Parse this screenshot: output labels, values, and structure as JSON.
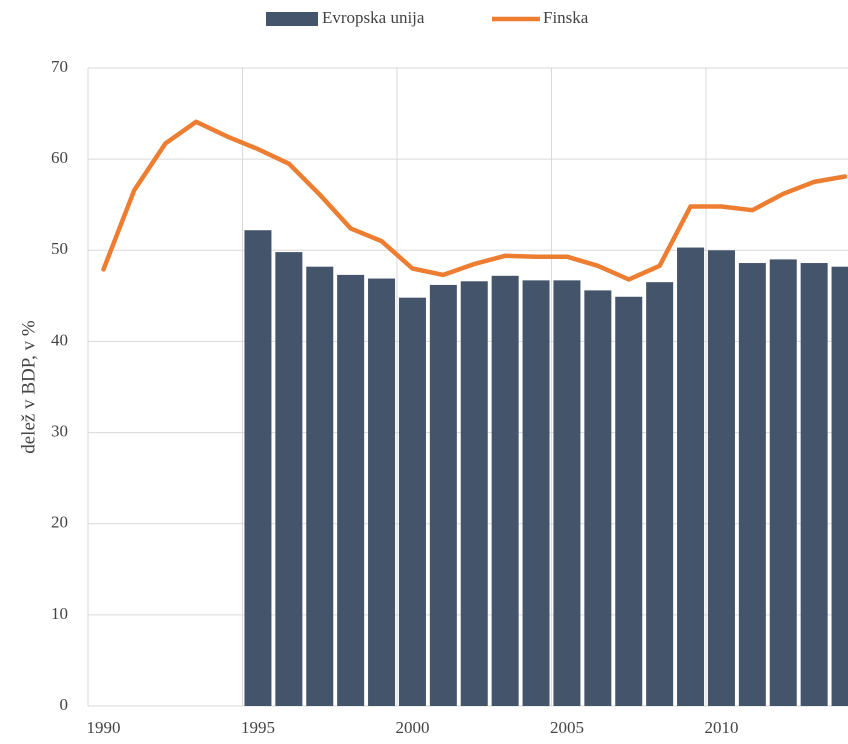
{
  "chart_data": {
    "type": "bar-line",
    "y_label": "delež v BDP, v %",
    "categories": [
      "1990",
      null,
      null,
      null,
      null,
      "1995",
      null,
      null,
      null,
      null,
      "2000",
      null,
      null,
      null,
      null,
      "2005",
      null,
      null,
      null,
      null,
      "2010",
      null,
      null,
      null,
      null
    ],
    "series": [
      {
        "name": "Evropska unija",
        "type": "bar",
        "color": "#44546a",
        "values": [
          null,
          null,
          null,
          null,
          null,
          52.2,
          49.8,
          48.2,
          47.3,
          46.9,
          44.8,
          46.2,
          46.6,
          47.2,
          46.7,
          46.7,
          45.6,
          44.9,
          46.5,
          50.3,
          50.0,
          48.6,
          49.0,
          48.6,
          48.2
        ]
      },
      {
        "name": "Finska",
        "type": "line",
        "color": "#ed7d31",
        "values": [
          47.9,
          56.6,
          61.7,
          64.1,
          62.5,
          61.1,
          59.5,
          56.1,
          52.4,
          51.0,
          48.0,
          47.3,
          48.5,
          49.4,
          49.3,
          49.3,
          48.3,
          46.8,
          48.3,
          54.8,
          54.8,
          54.4,
          56.2,
          57.5,
          58.1
        ]
      }
    ],
    "ylim": [
      0,
      70
    ],
    "yticks": [
      0,
      10,
      20,
      30,
      40,
      50,
      60,
      70
    ],
    "grid": true,
    "legend": "top"
  }
}
